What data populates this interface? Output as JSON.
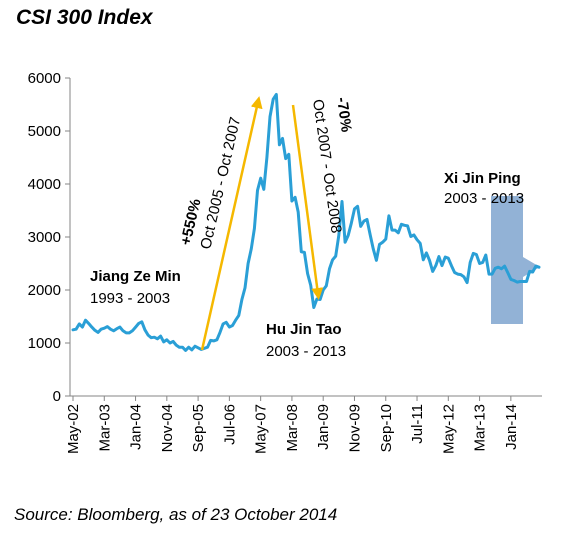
{
  "chart_data": {
    "type": "line",
    "title": "CSI 300 Index",
    "source": "Source: Bloomberg, as of 23 October 2014",
    "ylim": [
      0,
      6000
    ],
    "yticks": [
      0,
      1000,
      2000,
      3000,
      4000,
      5000,
      6000
    ],
    "x_tick_labels": [
      "May-02",
      "Mar-03",
      "Jan-04",
      "Nov-04",
      "Sep-05",
      "Jul-06",
      "May-07",
      "Mar-08",
      "Jan-09",
      "Nov-09",
      "Sep-10",
      "Jul-11",
      "May-12",
      "Mar-13",
      "Jan-14"
    ],
    "series": [
      {
        "color": "#2a9fd6",
        "points": [
          [
            "2002-05",
            1250
          ],
          [
            "2002-06",
            1260
          ],
          [
            "2002-07",
            1360
          ],
          [
            "2002-08",
            1300
          ],
          [
            "2002-09",
            1430
          ],
          [
            "2002-10",
            1370
          ],
          [
            "2002-11",
            1300
          ],
          [
            "2002-12",
            1240
          ],
          [
            "2003-01",
            1200
          ],
          [
            "2003-02",
            1260
          ],
          [
            "2003-03",
            1280
          ],
          [
            "2003-04",
            1310
          ],
          [
            "2003-05",
            1260
          ],
          [
            "2003-06",
            1230
          ],
          [
            "2003-07",
            1270
          ],
          [
            "2003-08",
            1300
          ],
          [
            "2003-09",
            1230
          ],
          [
            "2003-10",
            1190
          ],
          [
            "2003-11",
            1190
          ],
          [
            "2003-12",
            1230
          ],
          [
            "2004-01",
            1300
          ],
          [
            "2004-02",
            1370
          ],
          [
            "2004-03",
            1400
          ],
          [
            "2004-04",
            1250
          ],
          [
            "2004-05",
            1150
          ],
          [
            "2004-06",
            1100
          ],
          [
            "2004-07",
            1110
          ],
          [
            "2004-08",
            1080
          ],
          [
            "2004-09",
            1130
          ],
          [
            "2004-10",
            1020
          ],
          [
            "2004-11",
            1060
          ],
          [
            "2004-12",
            1000
          ],
          [
            "2005-01",
            1030
          ],
          [
            "2005-02",
            960
          ],
          [
            "2005-03",
            920
          ],
          [
            "2005-04",
            920
          ],
          [
            "2005-05",
            860
          ],
          [
            "2005-06",
            920
          ],
          [
            "2005-07",
            870
          ],
          [
            "2005-08",
            940
          ],
          [
            "2005-09",
            910
          ],
          [
            "2005-10",
            880
          ],
          [
            "2005-11",
            900
          ],
          [
            "2005-12",
            920
          ],
          [
            "2006-01",
            1050
          ],
          [
            "2006-02",
            1040
          ],
          [
            "2006-03",
            1060
          ],
          [
            "2006-04",
            1200
          ],
          [
            "2006-05",
            1360
          ],
          [
            "2006-06",
            1390
          ],
          [
            "2006-07",
            1300
          ],
          [
            "2006-08",
            1330
          ],
          [
            "2006-09",
            1430
          ],
          [
            "2006-10",
            1520
          ],
          [
            "2006-11",
            1820
          ],
          [
            "2006-12",
            2040
          ],
          [
            "2007-01",
            2500
          ],
          [
            "2007-02",
            2780
          ],
          [
            "2007-03",
            3160
          ],
          [
            "2007-04",
            3880
          ],
          [
            "2007-05",
            4110
          ],
          [
            "2007-06",
            3900
          ],
          [
            "2007-07",
            4500
          ],
          [
            "2007-08",
            5270
          ],
          [
            "2007-09",
            5600
          ],
          [
            "2007-10",
            5690
          ],
          [
            "2007-11",
            4740
          ],
          [
            "2007-12",
            4860
          ],
          [
            "2008-01",
            4480
          ],
          [
            "2008-02",
            4560
          ],
          [
            "2008-03",
            3680
          ],
          [
            "2008-04",
            3750
          ],
          [
            "2008-05",
            3470
          ],
          [
            "2008-06",
            2720
          ],
          [
            "2008-07",
            2710
          ],
          [
            "2008-08",
            2310
          ],
          [
            "2008-09",
            2090
          ],
          [
            "2008-10",
            1670
          ],
          [
            "2008-11",
            1830
          ],
          [
            "2008-12",
            1820
          ],
          [
            "2009-01",
            2000
          ],
          [
            "2009-02",
            2080
          ],
          [
            "2009-03",
            2400
          ],
          [
            "2009-04",
            2570
          ],
          [
            "2009-05",
            2640
          ],
          [
            "2009-06",
            3030
          ],
          [
            "2009-07",
            3670
          ],
          [
            "2009-08",
            2900
          ],
          [
            "2009-09",
            3030
          ],
          [
            "2009-10",
            3260
          ],
          [
            "2009-11",
            3530
          ],
          [
            "2009-12",
            3580
          ],
          [
            "2010-01",
            3200
          ],
          [
            "2010-02",
            3300
          ],
          [
            "2010-03",
            3330
          ],
          [
            "2010-04",
            3050
          ],
          [
            "2010-05",
            2780
          ],
          [
            "2010-06",
            2560
          ],
          [
            "2010-07",
            2860
          ],
          [
            "2010-08",
            2900
          ],
          [
            "2010-09",
            2960
          ],
          [
            "2010-10",
            3400
          ],
          [
            "2010-11",
            3130
          ],
          [
            "2010-12",
            3130
          ],
          [
            "2011-01",
            3080
          ],
          [
            "2011-02",
            3240
          ],
          [
            "2011-03",
            3220
          ],
          [
            "2011-04",
            3210
          ],
          [
            "2011-05",
            3010
          ],
          [
            "2011-06",
            3040
          ],
          [
            "2011-07",
            2950
          ],
          [
            "2011-08",
            2880
          ],
          [
            "2011-09",
            2570
          ],
          [
            "2011-10",
            2700
          ],
          [
            "2011-11",
            2560
          ],
          [
            "2011-12",
            2350
          ],
          [
            "2012-01",
            2460
          ],
          [
            "2012-02",
            2630
          ],
          [
            "2012-03",
            2460
          ],
          [
            "2012-04",
            2620
          ],
          [
            "2012-05",
            2600
          ],
          [
            "2012-06",
            2460
          ],
          [
            "2012-07",
            2330
          ],
          [
            "2012-08",
            2300
          ],
          [
            "2012-09",
            2290
          ],
          [
            "2012-10",
            2250
          ],
          [
            "2012-11",
            2140
          ],
          [
            "2012-12",
            2520
          ],
          [
            "2013-01",
            2690
          ],
          [
            "2013-02",
            2670
          ],
          [
            "2013-03",
            2500
          ],
          [
            "2013-04",
            2520
          ],
          [
            "2013-05",
            2660
          ],
          [
            "2013-06",
            2300
          ],
          [
            "2013-07",
            2300
          ],
          [
            "2013-08",
            2410
          ],
          [
            "2013-09",
            2430
          ],
          [
            "2013-10",
            2400
          ],
          [
            "2013-11",
            2450
          ],
          [
            "2013-12",
            2330
          ],
          [
            "2014-01",
            2200
          ],
          [
            "2014-02",
            2180
          ],
          [
            "2014-03",
            2150
          ],
          [
            "2014-04",
            2160
          ],
          [
            "2014-05",
            2160
          ],
          [
            "2014-06",
            2160
          ],
          [
            "2014-07",
            2350
          ],
          [
            "2014-08",
            2340
          ],
          [
            "2014-09",
            2450
          ],
          [
            "2014-10",
            2430
          ]
        ]
      }
    ],
    "annotations": {
      "jiang": {
        "name": "Jiang Ze Min",
        "years": "1993 - 2003"
      },
      "hu": {
        "name": "Hu Jin Tao",
        "years": "2003 - 2013"
      },
      "xi": {
        "name": "Xi Jin Ping",
        "years": "2003 - 2013"
      },
      "rise": {
        "pct": "+550%",
        "period": "Oct 2005 - Oct 2007"
      },
      "fall": {
        "pct": "-70%",
        "period": "Oct 2007 - Oct 2008"
      }
    },
    "colors": {
      "line": "#2a9fd6",
      "arrow": "#f5b800",
      "highlight_box": "#7fa4cf",
      "axis": "#868686"
    }
  }
}
